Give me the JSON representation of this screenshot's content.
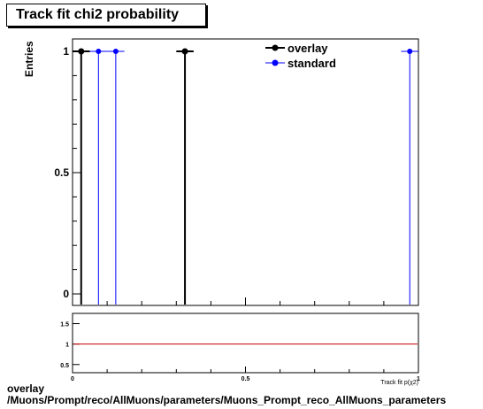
{
  "title": "Track fit chi2 probability",
  "caption": {
    "line1": "overlay",
    "line2": "/Muons/Prompt/reco/AllMuons/parameters/Muons_Prompt_reco_AllMuons_parameters"
  },
  "chart_data": [
    {
      "type": "scatter",
      "panel": "main",
      "ylabel": "Entries",
      "xlabel": "Track fit p(χ2)",
      "xlim": [
        0,
        1
      ],
      "ylim": [
        0,
        1.05
      ],
      "yticks": [
        0,
        0.5,
        1
      ],
      "ytick_labels": [
        "0",
        "0.5",
        "1"
      ],
      "legend_position": "top-right",
      "series": [
        {
          "name": "overlay",
          "color": "#000000",
          "x": [
            0.025,
            0.325
          ],
          "y": [
            1,
            1
          ],
          "xerr": 0.025
        },
        {
          "name": "standard",
          "color": "#0000ff",
          "x": [
            0.075,
            0.125,
            0.975
          ],
          "y": [
            1,
            1,
            1
          ],
          "xerr": 0.025
        }
      ]
    },
    {
      "type": "line",
      "panel": "ratio",
      "xlim": [
        0,
        1
      ],
      "ylim": [
        0.3,
        1.75
      ],
      "yticks": [
        0.5,
        1,
        1.5
      ],
      "ytick_labels": [
        "0.5",
        "1",
        "1.5"
      ],
      "xticks": [
        0,
        0.5,
        1
      ],
      "xtick_labels": [
        "0",
        "0.5",
        "1"
      ],
      "reference_line": {
        "y": 1,
        "color": "#cc0000"
      }
    }
  ]
}
